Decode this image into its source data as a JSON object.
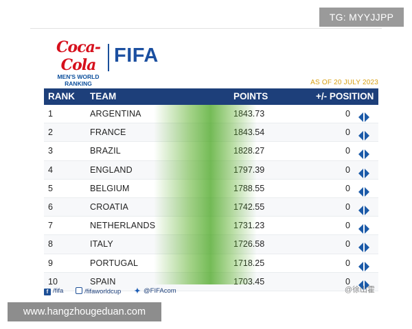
{
  "overlay": {
    "tg_label": "TG: MYYJJPP",
    "site_label": "www.hangzhougeduan.com"
  },
  "header": {
    "sponsor_script": "Coca-Cola",
    "sponsor_line1": "MEN'S WORLD",
    "sponsor_line2": "RANKING",
    "brand": "FIFA",
    "as_of": "AS OF 20 JULY 2023"
  },
  "table": {
    "columns": [
      "RANK",
      "TEAM",
      "POINTS",
      "+/- POSITION"
    ],
    "rows": [
      {
        "rank": "1",
        "team": "ARGENTINA",
        "points": "1843.73",
        "change": "0"
      },
      {
        "rank": "2",
        "team": "FRANCE",
        "points": "1843.54",
        "change": "0"
      },
      {
        "rank": "3",
        "team": "BRAZIL",
        "points": "1828.27",
        "change": "0"
      },
      {
        "rank": "4",
        "team": "ENGLAND",
        "points": "1797.39",
        "change": "0"
      },
      {
        "rank": "5",
        "team": "BELGIUM",
        "points": "1788.55",
        "change": "0"
      },
      {
        "rank": "6",
        "team": "CROATIA",
        "points": "1742.55",
        "change": "0"
      },
      {
        "rank": "7",
        "team": "NETHERLANDS",
        "points": "1731.23",
        "change": "0"
      },
      {
        "rank": "8",
        "team": "ITALY",
        "points": "1726.58",
        "change": "0"
      },
      {
        "rank": "9",
        "team": "PORTUGAL",
        "points": "1718.25",
        "change": "0"
      },
      {
        "rank": "10",
        "team": "SPAIN",
        "points": "1703.45",
        "change": "0"
      }
    ]
  },
  "footer": {
    "facebook": "/fifa",
    "instagram": "/fifaworldcup",
    "twitter": "@FIFAcom",
    "stamp": "@徐山霍"
  },
  "icons": {
    "facebook": "facebook-icon",
    "instagram": "instagram-icon",
    "twitter": "twitter-icon",
    "position": "arrows-left-right-icon"
  },
  "colors": {
    "header_bg": "#1d3f7a",
    "brand_blue": "#1b4fa0",
    "coke_red": "#d6101c",
    "as_of_gold": "#d8a013",
    "band_green": "#5aaf28"
  }
}
